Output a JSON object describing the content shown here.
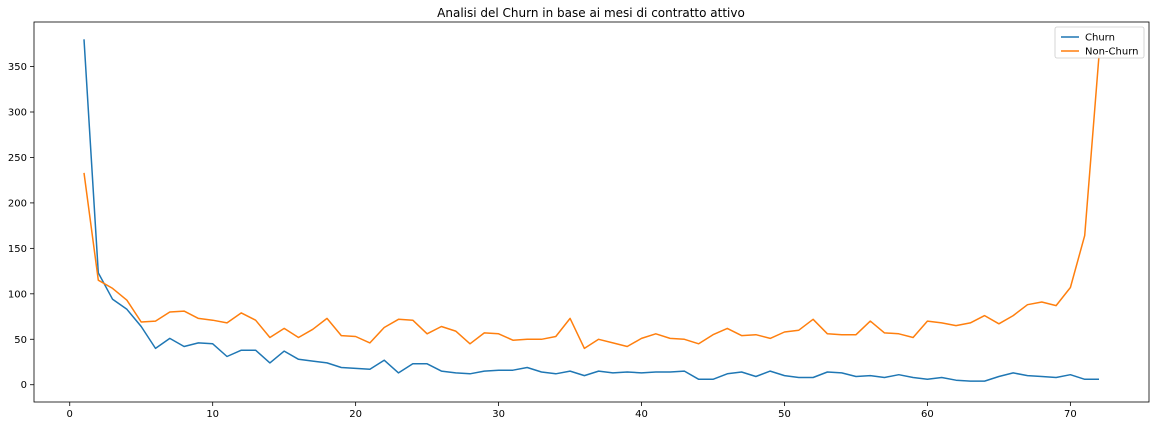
{
  "chart_data": {
    "type": "line",
    "title": "Analisi del Churn in base ai mesi di contratto attivo",
    "xlabel": "",
    "ylabel": "",
    "xlim": [
      -2.5,
      75.5
    ],
    "ylim": [
      -19,
      399
    ],
    "xticks": [
      0,
      10,
      20,
      30,
      40,
      50,
      60,
      70
    ],
    "yticks": [
      0,
      50,
      100,
      150,
      200,
      250,
      300,
      350
    ],
    "grid": false,
    "legend_position": "top-right",
    "x": [
      1,
      2,
      3,
      4,
      5,
      6,
      7,
      8,
      9,
      10,
      11,
      12,
      13,
      14,
      15,
      16,
      17,
      18,
      19,
      20,
      21,
      22,
      23,
      24,
      25,
      26,
      27,
      28,
      29,
      30,
      31,
      32,
      33,
      34,
      35,
      36,
      37,
      38,
      39,
      40,
      41,
      42,
      43,
      44,
      45,
      46,
      47,
      48,
      49,
      50,
      51,
      52,
      53,
      54,
      55,
      56,
      57,
      58,
      59,
      60,
      61,
      62,
      63,
      64,
      65,
      66,
      67,
      68,
      69,
      70,
      71,
      72
    ],
    "series": [
      {
        "name": "Churn",
        "color": "#1f77b4",
        "values": [
          380,
          123,
          94,
          83,
          64,
          40,
          51,
          42,
          46,
          45,
          31,
          38,
          38,
          24,
          37,
          28,
          26,
          24,
          19,
          18,
          17,
          27,
          13,
          23,
          23,
          15,
          13,
          12,
          15,
          16,
          16,
          19,
          14,
          12,
          15,
          10,
          15,
          13,
          14,
          13,
          14,
          14,
          15,
          6,
          6,
          12,
          14,
          9,
          15,
          10,
          8,
          8,
          14,
          13,
          9,
          10,
          8,
          11,
          8,
          6,
          8,
          5,
          4,
          4,
          9,
          13,
          10,
          9,
          8,
          11,
          6,
          6
        ]
      },
      {
        "name": "Non-Churn",
        "color": "#ff7f0e",
        "values": [
          233,
          115,
          106,
          93,
          69,
          70,
          80,
          81,
          73,
          71,
          68,
          79,
          71,
          52,
          62,
          52,
          61,
          73,
          54,
          53,
          46,
          63,
          72,
          71,
          56,
          64,
          59,
          45,
          57,
          56,
          49,
          50,
          50,
          53,
          73,
          40,
          50,
          46,
          42,
          51,
          56,
          51,
          50,
          45,
          55,
          62,
          54,
          55,
          51,
          58,
          60,
          72,
          56,
          55,
          55,
          70,
          57,
          56,
          52,
          70,
          68,
          65,
          68,
          76,
          67,
          76,
          88,
          91,
          87,
          107,
          164,
          362
        ]
      }
    ]
  }
}
